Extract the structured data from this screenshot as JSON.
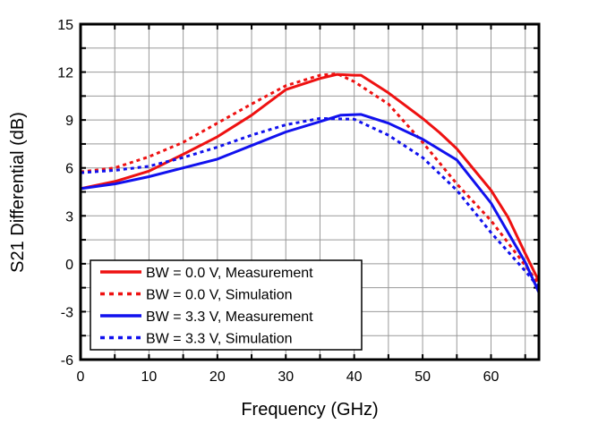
{
  "chart_data": {
    "type": "line",
    "xlabel": "Frequency (GHz)",
    "ylabel": "S21 Differential (dB)",
    "xlim": [
      0,
      67
    ],
    "ylim": [
      -6,
      15
    ],
    "xticks": [
      0,
      10,
      20,
      30,
      40,
      50,
      60
    ],
    "yticks": [
      -6,
      -3,
      0,
      3,
      6,
      9,
      12,
      15
    ],
    "grid": true,
    "legend_position": "bottom-left",
    "series": [
      {
        "name": "BW = 0.0 V, Measurement",
        "color": "#ee1111",
        "style": "solid",
        "x": [
          0,
          5,
          10,
          15,
          20,
          25,
          30,
          35,
          37.5,
          40,
          41,
          45,
          50,
          52.5,
          55,
          57.5,
          60,
          62.5,
          65,
          67
        ],
        "y": [
          4.7,
          5.15,
          5.8,
          6.85,
          7.95,
          9.3,
          10.9,
          11.6,
          11.85,
          11.8,
          11.8,
          10.7,
          9.1,
          8.2,
          7.2,
          5.9,
          4.6,
          2.9,
          0.65,
          -1.1
        ]
      },
      {
        "name": "BW = 0.0 V, Simulation",
        "color": "#ee1111",
        "style": "dotted",
        "x": [
          0,
          5,
          10,
          15,
          20,
          25,
          30,
          35,
          37.5,
          40,
          45,
          50,
          55,
          60,
          65,
          67
        ],
        "y": [
          5.75,
          6.0,
          6.7,
          7.6,
          8.8,
          10.0,
          11.15,
          11.8,
          11.9,
          11.4,
          10.0,
          7.6,
          5.0,
          2.7,
          -0.1,
          -1.3
        ]
      },
      {
        "name": "BW = 3.3 V, Measurement",
        "color": "#1111ee",
        "style": "solid",
        "x": [
          0,
          5,
          10,
          15,
          20,
          25,
          30,
          35,
          38,
          41,
          45,
          50,
          55,
          60,
          65,
          67
        ],
        "y": [
          4.7,
          5.0,
          5.45,
          6.0,
          6.55,
          7.4,
          8.25,
          8.9,
          9.3,
          9.35,
          8.8,
          7.8,
          6.5,
          3.8,
          0.1,
          -1.8
        ]
      },
      {
        "name": "BW = 3.3 V, Simulation",
        "color": "#1111ee",
        "style": "dotted",
        "x": [
          0,
          5,
          10,
          15,
          20,
          25,
          30,
          35,
          40,
          45,
          50,
          55,
          60,
          65,
          67
        ],
        "y": [
          5.7,
          5.85,
          6.1,
          6.65,
          7.3,
          8.05,
          8.7,
          9.1,
          9.05,
          8.05,
          6.65,
          4.6,
          1.95,
          -0.45,
          -1.5
        ]
      }
    ]
  }
}
